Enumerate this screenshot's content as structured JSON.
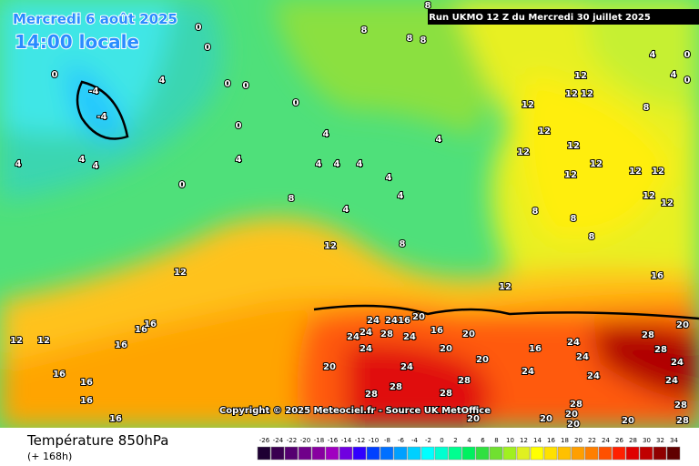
{
  "header": {
    "date": "Mercredi 6 août 2025",
    "time": "14:00 locale",
    "run": "Run UKMO 12 Z du Mercredi 30 juillet 2025"
  },
  "copyright": "Copyright © 2025 Meteociel.fr - Source UK MetOffice",
  "footer": {
    "title": "Température 850hPa",
    "lead": "(+ 168h)"
  },
  "scale": {
    "values": [
      -26,
      -24,
      -22,
      -20,
      -18,
      -16,
      -14,
      -12,
      -10,
      -8,
      -6,
      -4,
      -2,
      0,
      2,
      4,
      6,
      8,
      10,
      12,
      14,
      16,
      18,
      20,
      22,
      24,
      26,
      28,
      30,
      32,
      34
    ],
    "colors": [
      "#1e0033",
      "#3a0050",
      "#550070",
      "#70008a",
      "#8800a0",
      "#a000c0",
      "#7000e0",
      "#3000ff",
      "#0040ff",
      "#0070ff",
      "#00a0ff",
      "#00d0ff",
      "#00ffff",
      "#00ffd0",
      "#00ff90",
      "#00f060",
      "#30e040",
      "#70e030",
      "#a0f020",
      "#e0f020",
      "#ffff00",
      "#ffe000",
      "#ffc000",
      "#ff9f00",
      "#ff7f00",
      "#ff5000",
      "#ff2000",
      "#e00000",
      "#c00000",
      "#900000",
      "#600000"
    ]
  },
  "contour_labels": [
    -4,
    -4,
    0,
    4,
    4,
    4,
    4,
    0,
    0,
    0,
    0,
    0,
    0,
    0,
    8,
    8,
    8,
    8,
    4,
    4,
    4,
    4,
    4,
    4,
    4,
    4,
    4,
    8,
    8,
    12,
    12,
    12,
    12,
    16,
    16,
    16,
    16,
    16,
    16,
    16,
    12,
    12,
    12,
    12,
    12,
    12,
    12,
    12,
    12,
    12,
    12,
    12,
    12,
    8,
    8,
    8,
    12,
    16,
    20,
    24,
    24,
    24,
    24,
    28,
    24,
    24,
    16,
    20,
    16,
    20,
    20,
    20,
    24,
    16,
    24,
    24,
    24,
    28,
    28,
    28,
    28,
    24,
    28,
    28,
    24,
    24,
    28,
    28,
    28,
    20,
    20,
    20,
    20,
    20,
    20,
    4,
    0,
    4,
    8,
    0
  ]
}
